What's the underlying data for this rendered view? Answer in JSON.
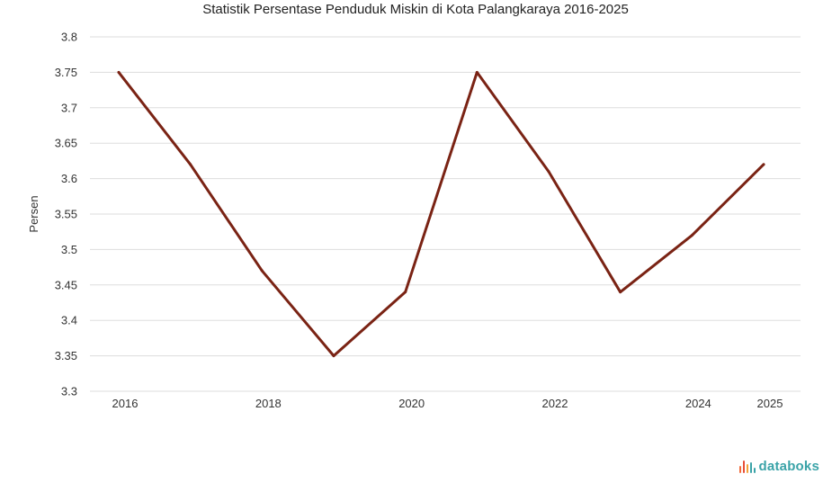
{
  "chart_data": {
    "type": "line",
    "title": "Statistik Persentase Penduduk Miskin di Kota Palangkaraya 2016-2025",
    "xlabel": "",
    "ylabel": "Persen",
    "x": [
      2016,
      2017,
      2018,
      2019,
      2020,
      2021,
      2022,
      2023,
      2024,
      2025
    ],
    "x_tick_labels": [
      "2016",
      "2018",
      "2020",
      "2022",
      "2024",
      "2025"
    ],
    "x_tick_values": [
      2016,
      2018,
      2020,
      2022,
      2024,
      2025
    ],
    "y_tick_labels": [
      "3.8",
      "3.75",
      "3.7",
      "3.65",
      "3.6",
      "3.55",
      "3.5",
      "3.45",
      "3.4",
      "3.35",
      "3.3"
    ],
    "y_tick_values": [
      3.8,
      3.75,
      3.7,
      3.65,
      3.6,
      3.55,
      3.5,
      3.45,
      3.4,
      3.35,
      3.3
    ],
    "ylim": [
      3.3,
      3.8
    ],
    "grid": true,
    "series": [
      {
        "values": [
          3.75,
          3.62,
          3.47,
          3.35,
          3.44,
          3.75,
          3.61,
          3.44,
          3.52,
          3.62
        ],
        "color": "#7a2314"
      }
    ]
  },
  "branding": {
    "logo_text": "databoks",
    "logo_color": "#3aa3a8",
    "logo_mark_colors": [
      "#f26b3a",
      "#e8503a",
      "#f4a23a",
      "#3aa3a8",
      "#3aa3a8"
    ]
  }
}
